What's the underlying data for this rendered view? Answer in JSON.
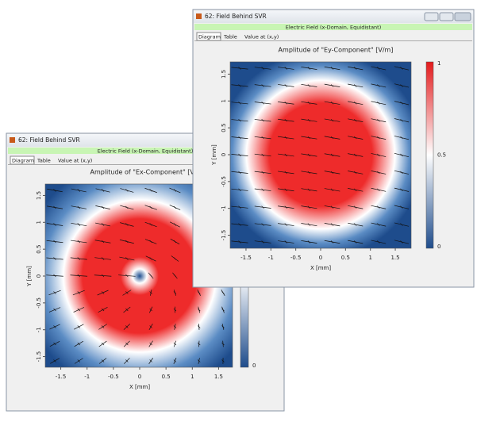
{
  "windows": [
    {
      "title": "62: Field Behind SVR",
      "header": "Electric Field (x-Domain, Equidistant)",
      "tabs": [
        "Diagram",
        "Table",
        "Value at (x,y)"
      ],
      "plot": {
        "title": "Amplitude of \"Ex-Component\"  [V/m]",
        "x_label": "X [mm]",
        "y_label": "Y [mm]",
        "x_ticks": [
          "-1.5",
          "-1",
          "-0.5",
          "0",
          "0.5",
          "1",
          "1.5"
        ],
        "y_ticks": [
          "1.5",
          "1",
          "0.5",
          "0",
          "-0.5",
          "-1",
          "-1.5"
        ],
        "colorbar_ticks": [
          "0"
        ]
      }
    },
    {
      "title": "62: Field Behind SVR",
      "header": "Electric Field (x-Domain, Equidistant)",
      "tabs": [
        "Diagram",
        "Table",
        "Value at (x,y)"
      ],
      "plot": {
        "title": "Amplitude of \"Ey-Component\"  [V/m]",
        "x_label": "X [mm]",
        "y_label": "Y [mm]",
        "x_ticks": [
          "-1.5",
          "-1",
          "-0.5",
          "0",
          "0.5",
          "1",
          "1.5"
        ],
        "y_ticks": [
          "1.5",
          "1",
          "0.5",
          "0",
          "-0.5",
          "-1",
          "-1.5"
        ],
        "colorbar_ticks": [
          "1",
          "0.5",
          "0"
        ]
      }
    }
  ]
}
